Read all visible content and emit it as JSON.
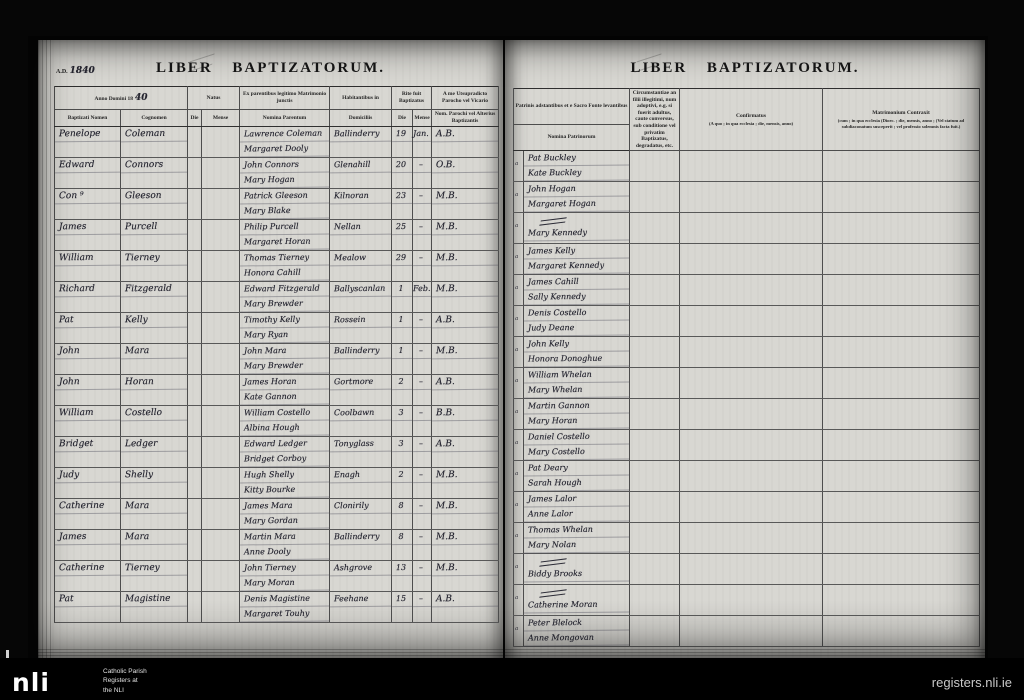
{
  "colors": {
    "frame": "#000000",
    "page": "#d8d7d2",
    "ink": "#262630",
    "rule_line": "#4d4d4d"
  },
  "footer": {
    "logo": "nli",
    "caption": "Catholic Parish\nRegisters at\nthe NLI",
    "site": "registers.nli.ie"
  },
  "left_page": {
    "ad_printed": "A.D.",
    "year": "1840",
    "title": "LIBER  BAPTIZATORUM.",
    "headers": {
      "anno_domini": "Anno Domini 18",
      "anno_year_hw": "40",
      "baptizati_nomen": "Baptizati Nomen",
      "cognomen": "Cognomen",
      "natus": "Natus",
      "die": "Die",
      "mense": "Mense",
      "ex_parentibus": "Ex parentibus legitimo Matrimonio junctis",
      "nomina_parentum": "Nomina Parentum",
      "habitantibus": "Habitantibus in",
      "domiciliis": "Domiciliis",
      "rite": "Rite fuit Baptizatus",
      "a_me": "A me Utsupradicto Parocho vel Vicario",
      "nom_parochi": "Nom. Parochi vel Alterius Baptizantis"
    },
    "rows": [
      {
        "given": "Penelope",
        "surname": "Coleman",
        "parent1": "Lawrence Coleman",
        "parent2": "Margaret Dooly",
        "domicile": "Ballinderry",
        "day": "19",
        "month": "Jan.",
        "priest": "A.B."
      },
      {
        "given": "Edward",
        "surname": "Connors",
        "parent1": "John Connors",
        "parent2": "Mary Hogan",
        "domicile": "Glenahill",
        "day": "20",
        "month": "–",
        "priest": "O.B."
      },
      {
        "given": "Con ⁹",
        "surname": "Gleeson",
        "parent1": "Patrick Gleeson",
        "parent2": "Mary Blake",
        "domicile": "Kilnoran",
        "day": "23",
        "month": "–",
        "priest": "M.B."
      },
      {
        "given": "James",
        "surname": "Purcell",
        "parent1": "Philip Purcell",
        "parent2": "Margaret Horan",
        "domicile": "Nellan",
        "day": "25",
        "month": "–",
        "priest": "M.B."
      },
      {
        "given": "William",
        "surname": "Tierney",
        "parent1": "Thomas Tierney",
        "parent2": "Honora Cahill",
        "domicile": "Mealow",
        "day": "29",
        "month": "–",
        "priest": "M.B."
      },
      {
        "given": "Richard",
        "surname": "Fitzgerald",
        "parent1": "Edward Fitzgerald",
        "parent2": "Mary Brewder",
        "domicile": "Ballyscanlan",
        "day": "1",
        "month": "Feb.",
        "priest": "M.B."
      },
      {
        "given": "Pat",
        "surname": "Kelly",
        "parent1": "Timothy Kelly",
        "parent2": "Mary Ryan",
        "domicile": "Rossein",
        "day": "1",
        "month": "–",
        "priest": "A.B."
      },
      {
        "given": "John",
        "surname": "Mara",
        "parent1": "John Mara",
        "parent2": "Mary Brewder",
        "domicile": "Ballinderry",
        "day": "1",
        "month": "–",
        "priest": "M.B."
      },
      {
        "given": "John",
        "surname": "Horan",
        "parent1": "James Horan",
        "parent2": "Kate Gannon",
        "domicile": "Gortmore",
        "day": "2",
        "month": "–",
        "priest": "A.B."
      },
      {
        "given": "William",
        "surname": "Costello",
        "parent1": "William Costello",
        "parent2": "Albina Hough",
        "domicile": "Coolbawn",
        "day": "3",
        "month": "–",
        "priest": "B.B."
      },
      {
        "given": "Bridget",
        "surname": "Ledger",
        "parent1": "Edward Ledger",
        "parent2": "Bridget Corboy",
        "domicile": "Tonyglass",
        "day": "3",
        "month": "–",
        "priest": "A.B."
      },
      {
        "given": "Judy",
        "surname": "Shelly",
        "parent1": "Hugh Shelly",
        "parent2": "Kitty Bourke",
        "domicile": "Enagh",
        "day": "2",
        "month": "–",
        "priest": "M.B."
      },
      {
        "given": "Catherine",
        "surname": "Mara",
        "parent1": "James Mara",
        "parent2": "Mary Gordan",
        "domicile": "Clonirily",
        "day": "8",
        "month": "–",
        "priest": "M.B."
      },
      {
        "given": "James",
        "surname": "Mara",
        "parent1": "Martin Mara",
        "parent2": "Anne Dooly",
        "domicile": "Ballinderry",
        "day": "8",
        "month": "–",
        "priest": "M.B."
      },
      {
        "given": "Catherine",
        "surname": "Tierney",
        "parent1": "John Tierney",
        "parent2": "Mary Moran",
        "domicile": "Ashgrove",
        "day": "13",
        "month": "–",
        "priest": "M.B."
      },
      {
        "given": "Pat",
        "surname": "Magistine",
        "parent1": "Denis Magistine",
        "parent2": "Margaret Touhy",
        "domicile": "Feehane",
        "day": "15",
        "month": "–",
        "priest": "A.B."
      }
    ]
  },
  "right_page": {
    "title": "LIBER  BAPTIZATORUM.",
    "headers": {
      "patrinis": "Patrinis adstantibus et e Sacro Fonte levantibus",
      "nomina_patrinorum": "Nomina Patrinorum",
      "circumstantiae": "Circumstantiae an filii illegitimi, num adoptivi, e.g. si fuerit adultus, caute conversus, sub conditione vel privatim Baptizatus, degradatus, etc.",
      "confirmatus": "Confirmatus",
      "confirmatus_sub": "(A quo ; in qua ecclesia ; die, mensis, anno)",
      "matrimonium": "Matrimonium Contraxit",
      "matrimonium_sub": "(cum ; in qua ecclesia (Dioec. ; die, mensis, anno ; (Vel statum ad subdiaconatum susceperit ; vel professio solemnis facta fuit.)"
    },
    "ref_mark": "a",
    "rows": [
      {
        "sponsor1": "Pat Buckley",
        "sponsor2": "Kate Buckley",
        "ditto": false
      },
      {
        "sponsor1": "John Hogan",
        "sponsor2": "Margaret Hogan",
        "ditto": false
      },
      {
        "sponsor1": "",
        "sponsor2": "Mary Kennedy",
        "ditto": true
      },
      {
        "sponsor1": "James Kelly",
        "sponsor2": "Margaret Kennedy",
        "ditto": false
      },
      {
        "sponsor1": "James Cahill",
        "sponsor2": "Sally Kennedy",
        "ditto": false
      },
      {
        "sponsor1": "Denis Costello",
        "sponsor2": "Judy Deane",
        "ditto": false
      },
      {
        "sponsor1": "John Kelly",
        "sponsor2": "Honora Donoghue",
        "ditto": false
      },
      {
        "sponsor1": "William Whelan",
        "sponsor2": "Mary Whelan",
        "ditto": false
      },
      {
        "sponsor1": "Martin Gannon",
        "sponsor2": "Mary Horan",
        "ditto": false
      },
      {
        "sponsor1": "Daniel Costello",
        "sponsor2": "Mary Costello",
        "ditto": false
      },
      {
        "sponsor1": "Pat Deary",
        "sponsor2": "Sarah Hough",
        "ditto": false
      },
      {
        "sponsor1": "James Lalor",
        "sponsor2": "Anne Lalor",
        "ditto": false
      },
      {
        "sponsor1": "Thomas Whelan",
        "sponsor2": "Mary Nolan",
        "ditto": false
      },
      {
        "sponsor1": "",
        "sponsor2": "Biddy Brooks",
        "ditto": true
      },
      {
        "sponsor1": "",
        "sponsor2": "Catherine Moran",
        "ditto": true
      },
      {
        "sponsor1": "Peter Blelock",
        "sponsor2": "Anne Mongovan",
        "ditto": false
      }
    ]
  }
}
